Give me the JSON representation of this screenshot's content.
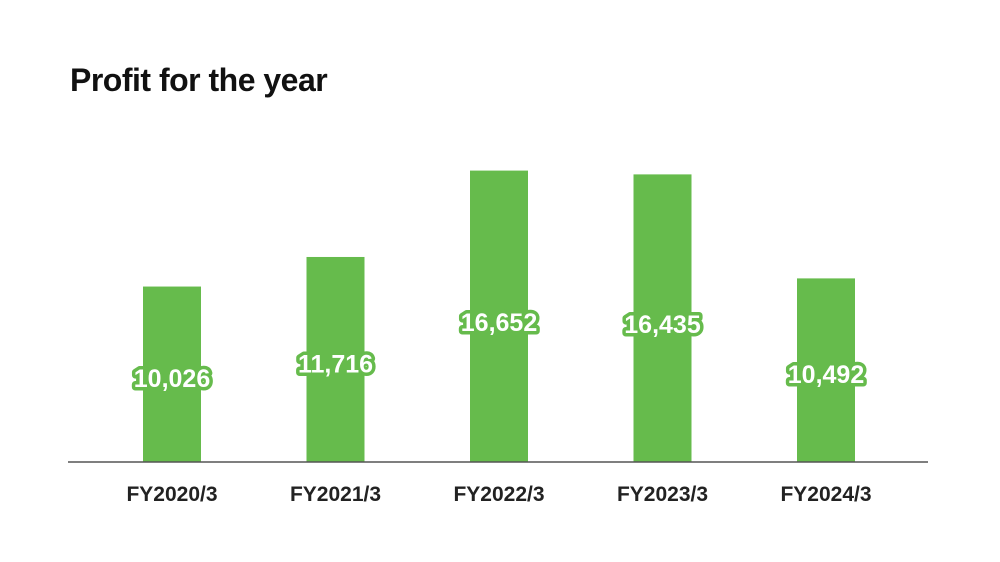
{
  "chart_data": {
    "type": "bar",
    "title": "Profit for the year",
    "categories": [
      "FY2020/3",
      "FY2021/3",
      "FY2022/3",
      "FY2023/3",
      "FY2024/3"
    ],
    "values": [
      10026,
      11716,
      16652,
      16435,
      10492
    ],
    "value_labels": [
      "10,026",
      "11,716",
      "16,652",
      "16,435",
      "10,492"
    ],
    "xlabel": "",
    "ylabel": "",
    "ylim": [
      0,
      20000
    ],
    "grid": false,
    "legend": "none",
    "colors": {
      "bar": "#66bb4c",
      "label_text": "#ffffff",
      "axis": "#555555",
      "tick_text": "#222222"
    }
  }
}
